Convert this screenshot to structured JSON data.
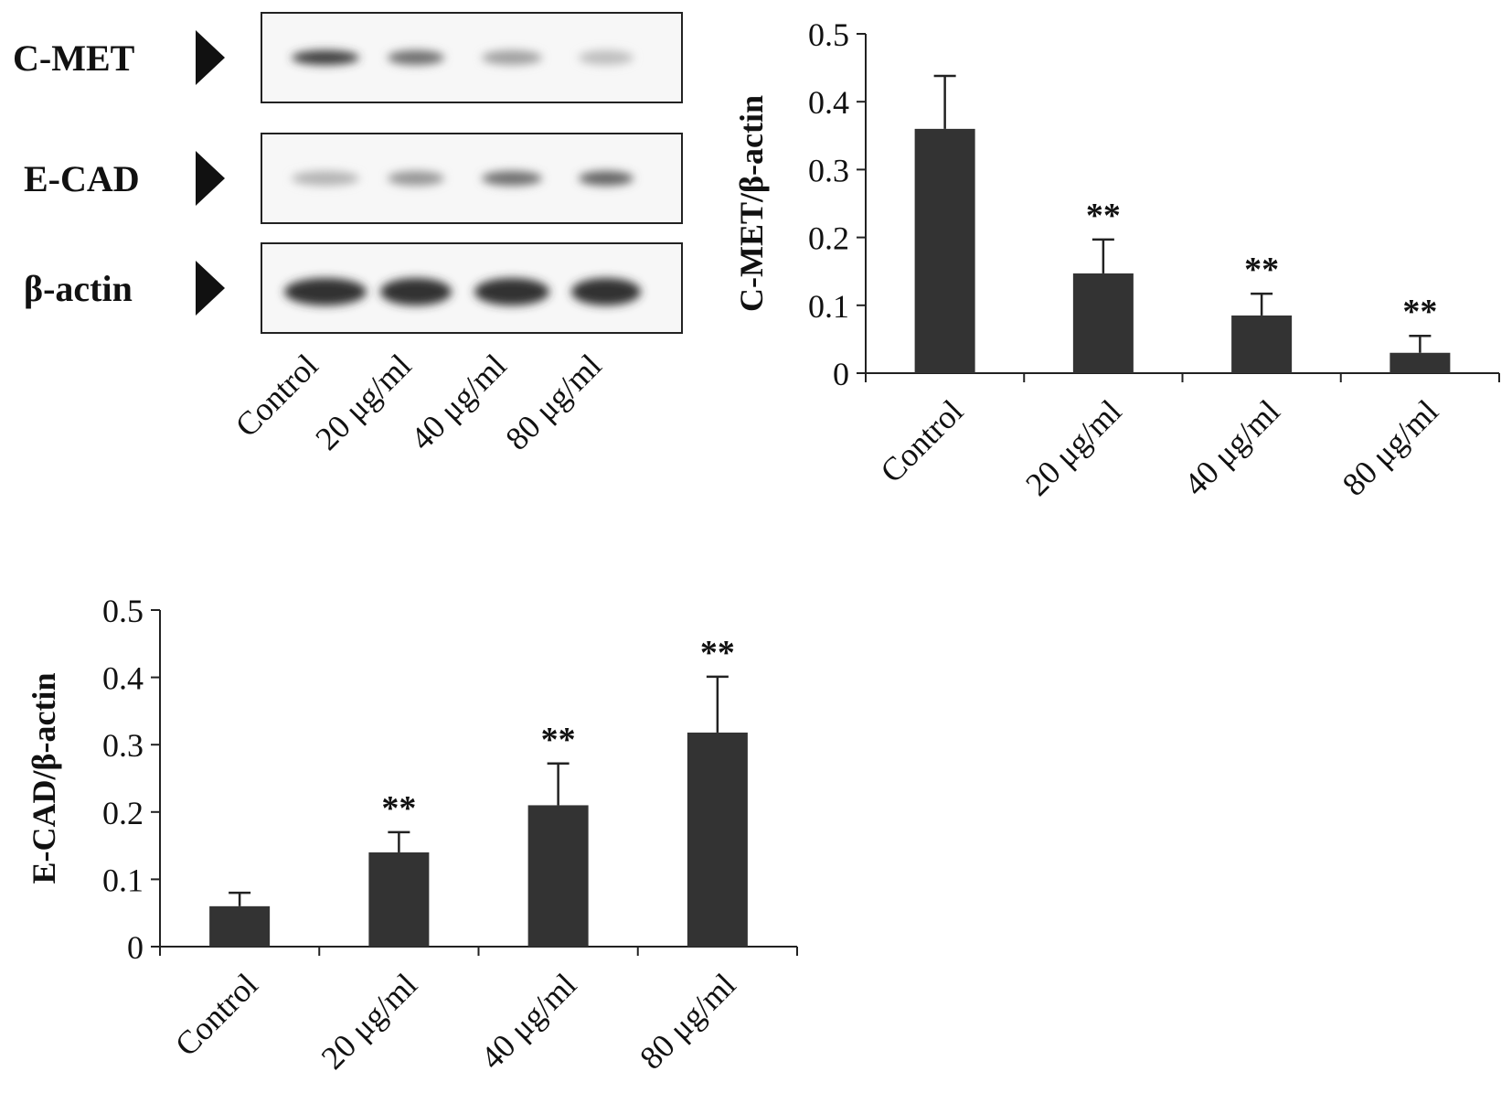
{
  "western_blot": {
    "rows": [
      {
        "label": "C-MET",
        "intensities": [
          0.85,
          0.6,
          0.35,
          0.2
        ]
      },
      {
        "label": "E-CAD",
        "intensities": [
          0.25,
          0.4,
          0.6,
          0.65
        ]
      },
      {
        "label": "β-actin",
        "intensities": [
          0.9,
          0.9,
          0.9,
          0.9
        ]
      }
    ],
    "lanes": [
      "Control",
      "20 μg/ml",
      "40 μg/ml",
      "80 μg/ml"
    ]
  },
  "chart_data": [
    {
      "type": "bar",
      "title": "",
      "xlabel": "",
      "ylabel": "C-MET/β-actin",
      "ylim": [
        0,
        0.5
      ],
      "yticks": [
        "0",
        "0.1",
        "0.2",
        "0.3",
        "0.4",
        "0.5"
      ],
      "categories": [
        "Control",
        "20 μg/ml",
        "40 μg/ml",
        "80 μg/ml"
      ],
      "values": [
        0.36,
        0.147,
        0.085,
        0.03
      ],
      "errors": [
        0.078,
        0.05,
        0.032,
        0.025
      ],
      "annotations": [
        "",
        "**",
        "**",
        "**"
      ],
      "bar_color": "#333333",
      "grid": false
    },
    {
      "type": "bar",
      "title": "",
      "xlabel": "",
      "ylabel": "E-CAD/β-actin",
      "ylim": [
        0,
        0.5
      ],
      "yticks": [
        "0",
        "0.1",
        "0.2",
        "0.3",
        "0.4",
        "0.5"
      ],
      "categories": [
        "Control",
        "20 μg/ml",
        "40 μg/ml",
        "80 μg/ml"
      ],
      "values": [
        0.06,
        0.14,
        0.21,
        0.318
      ],
      "errors": [
        0.02,
        0.03,
        0.062,
        0.083
      ],
      "annotations": [
        "",
        "**",
        "**",
        "**"
      ],
      "bar_color": "#333333",
      "grid": false
    }
  ]
}
